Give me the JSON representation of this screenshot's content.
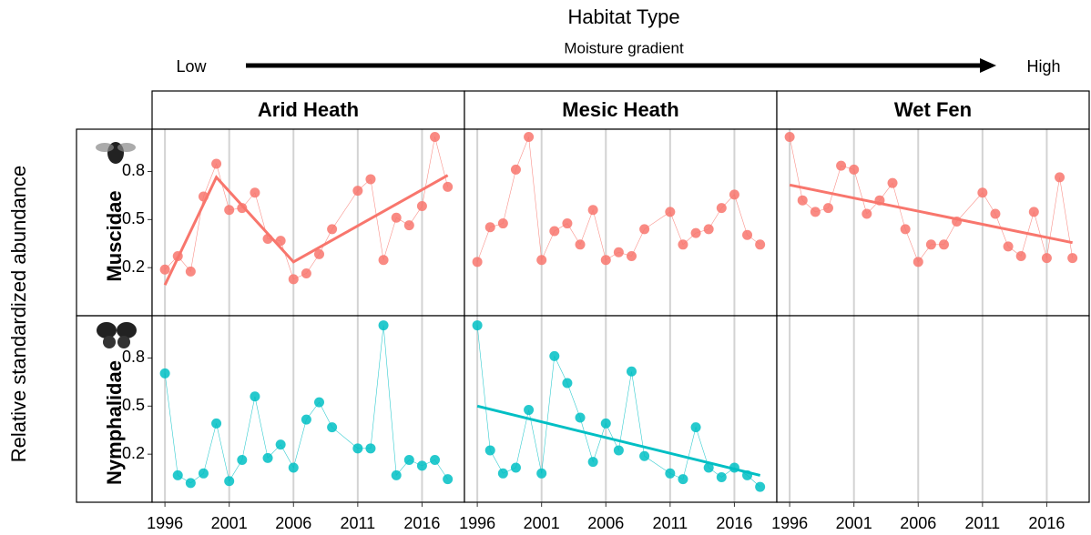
{
  "chart_data": {
    "type": "line",
    "title": "Habitat Type",
    "subtitle": "Moisture gradient",
    "gradient_low": "Low",
    "gradient_high": "High",
    "y_label": "Relative standardized abundance",
    "columns": [
      "Arid Heath",
      "Mesic Heath",
      "Wet Fen"
    ],
    "x": [
      1996,
      1997,
      1998,
      1999,
      2000,
      2001,
      2002,
      2003,
      2004,
      2005,
      2006,
      2007,
      2008,
      2009,
      2011,
      2012,
      2013,
      2014,
      2015,
      2016,
      2017,
      2018
    ],
    "xlim": [
      1995,
      2019.3
    ],
    "xticks": [
      1996,
      2001,
      2006,
      2011,
      2016
    ],
    "ylim": [
      0,
      0.97
    ],
    "yticks": [
      {
        "value": 0.25,
        "label": "0.2"
      },
      {
        "value": 0.5,
        "label": "0.5"
      },
      {
        "value": 0.75,
        "label": "0.8"
      }
    ],
    "grid": true,
    "rows": [
      {
        "name": "Muscidae",
        "color": "#f8766d",
        "panels": [
          {
            "values": [
              0.24,
              0.31,
              0.23,
              0.62,
              0.79,
              0.55,
              0.56,
              0.64,
              0.4,
              0.39,
              0.19,
              0.22,
              0.32,
              0.45,
              0.65,
              0.71,
              0.29,
              0.51,
              0.47,
              0.57,
              0.93,
              0.67
            ],
            "trend_x": [
              1996,
              2000,
              2006,
              2018
            ],
            "trend_values": [
              0.16,
              0.72,
              0.28,
              0.73
            ]
          },
          {
            "values": [
              0.28,
              0.46,
              0.48,
              0.76,
              0.93,
              0.29,
              0.44,
              0.48,
              0.37,
              0.55,
              0.29,
              0.33,
              0.31,
              0.45,
              0.54,
              0.37,
              0.43,
              0.45,
              0.56,
              0.63,
              0.42,
              0.37
            ]
          },
          {
            "values": [
              0.93,
              0.6,
              0.54,
              0.56,
              0.78,
              0.76,
              0.53,
              0.6,
              0.69,
              0.45,
              0.28,
              0.37,
              0.37,
              0.49,
              0.64,
              0.53,
              0.36,
              0.31,
              0.54,
              0.3,
              0.72,
              0.3
            ],
            "trend_x": [
              1996,
              2018
            ],
            "trend_values": [
              0.68,
              0.38
            ]
          }
        ]
      },
      {
        "name": "Nymphalidae",
        "color": "#00bfc4",
        "panels": [
          {
            "values": [
              0.67,
              0.14,
              0.1,
              0.15,
              0.41,
              0.11,
              0.22,
              0.55,
              0.23,
              0.3,
              0.18,
              0.43,
              0.52,
              0.39,
              0.28,
              0.28,
              0.92,
              0.14,
              0.22,
              0.19,
              0.22,
              0.12
            ]
          },
          {
            "values": [
              0.92,
              0.27,
              0.15,
              0.18,
              0.48,
              0.15,
              0.76,
              0.62,
              0.44,
              0.21,
              0.41,
              0.27,
              0.68,
              0.24,
              0.15,
              0.12,
              0.39,
              0.18,
              0.13,
              0.18,
              0.14,
              0.08
            ],
            "trend_x": [
              1996,
              2018
            ],
            "trend_values": [
              0.5,
              0.14
            ]
          },
          {
            "values": [
              null,
              null,
              null,
              null,
              null,
              null,
              null,
              null,
              null,
              null,
              null,
              null,
              null,
              null,
              null,
              null,
              null,
              null,
              null,
              null,
              null,
              null
            ]
          }
        ]
      }
    ]
  }
}
